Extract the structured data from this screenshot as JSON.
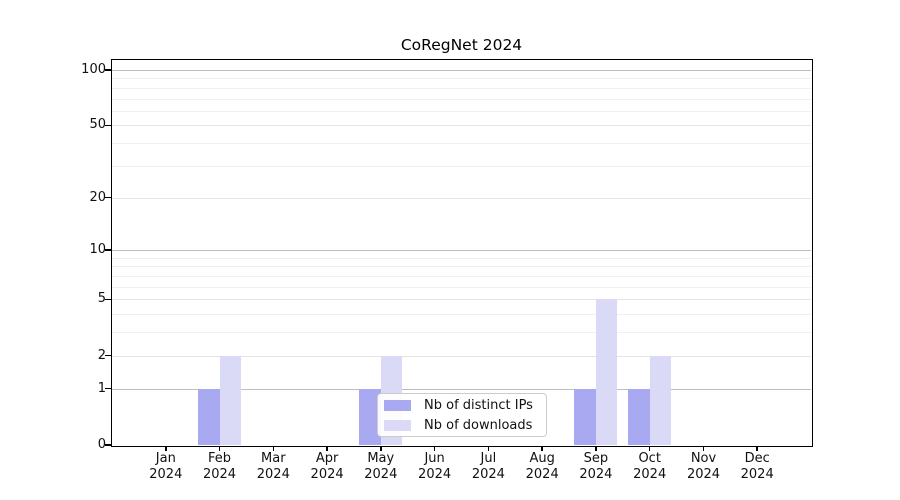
{
  "chart_data": {
    "type": "bar",
    "title": "CoRegNet 2024",
    "categories": [
      {
        "month": "Jan",
        "year": "2024"
      },
      {
        "month": "Feb",
        "year": "2024"
      },
      {
        "month": "Mar",
        "year": "2024"
      },
      {
        "month": "Apr",
        "year": "2024"
      },
      {
        "month": "May",
        "year": "2024"
      },
      {
        "month": "Jun",
        "year": "2024"
      },
      {
        "month": "Jul",
        "year": "2024"
      },
      {
        "month": "Aug",
        "year": "2024"
      },
      {
        "month": "Sep",
        "year": "2024"
      },
      {
        "month": "Oct",
        "year": "2024"
      },
      {
        "month": "Nov",
        "year": "2024"
      },
      {
        "month": "Dec",
        "year": "2024"
      }
    ],
    "series": [
      {
        "name": "Nb of distinct IPs",
        "color": "#a9a9f1",
        "values": [
          0,
          1,
          0,
          0,
          1,
          0,
          0,
          0,
          1,
          1,
          0,
          0
        ]
      },
      {
        "name": "Nb of downloads",
        "color": "#dadaf6",
        "values": [
          0,
          2,
          0,
          0,
          2,
          0,
          0,
          0,
          5,
          2,
          0,
          0
        ]
      }
    ],
    "yscale": "log1p",
    "ylim": [
      0,
      113
    ],
    "y_tick_values": [
      0,
      1,
      2,
      5,
      10,
      20,
      50,
      100
    ],
    "y_tick_labels": [
      "0",
      "1",
      "2",
      "5",
      "10",
      "20",
      "50",
      "100"
    ],
    "y_decade_values": [
      1,
      10,
      100
    ],
    "y_minor_gridline_values": [
      3,
      4,
      6,
      7,
      8,
      9,
      30,
      40,
      60,
      70,
      80,
      90
    ],
    "grid": "horizontal",
    "legend_position": "inside-bottom-center",
    "grid_colors": {
      "major": "#bdbdbd",
      "labeled": "#e4e4e4",
      "minor": "#f0f0f0"
    }
  }
}
